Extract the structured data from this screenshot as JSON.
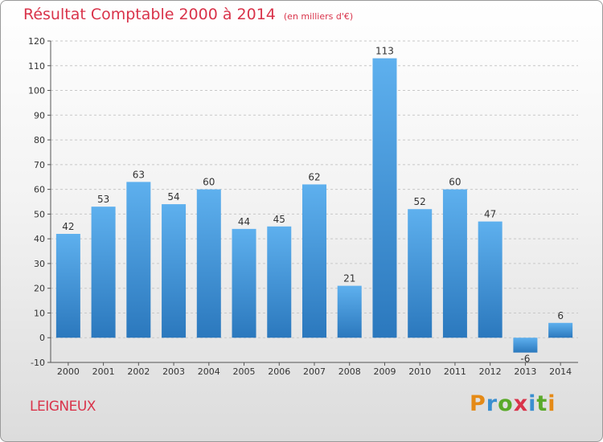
{
  "title": "Résultat Comptable 2000 à 2014",
  "title_unit": "(en milliers d'€)",
  "commune": "LEIGNEUX",
  "logo": {
    "letters": [
      "P",
      "r",
      "o",
      "x",
      "i",
      "t",
      "i"
    ],
    "colors": [
      "#e58a16",
      "#3a8fd0",
      "#5aaa2a",
      "#d9334a",
      "#3a8fd0",
      "#5aaa2a",
      "#e58a16"
    ]
  },
  "colors": {
    "bar": "#4a9ee0",
    "title": "#d9334a"
  },
  "chart_data": {
    "type": "bar",
    "categories": [
      "2000",
      "2001",
      "2002",
      "2003",
      "2004",
      "2005",
      "2006",
      "2007",
      "2008",
      "2009",
      "2010",
      "2011",
      "2012",
      "2013",
      "2014"
    ],
    "values": [
      42,
      53,
      63,
      54,
      60,
      44,
      45,
      62,
      21,
      113,
      52,
      60,
      47,
      -6,
      6
    ],
    "ylim": [
      -10,
      120
    ],
    "yticks": [
      "-10",
      "0",
      "10",
      "20",
      "30",
      "40",
      "50",
      "60",
      "70",
      "80",
      "90",
      "100",
      "110",
      "120"
    ],
    "grid": true
  }
}
